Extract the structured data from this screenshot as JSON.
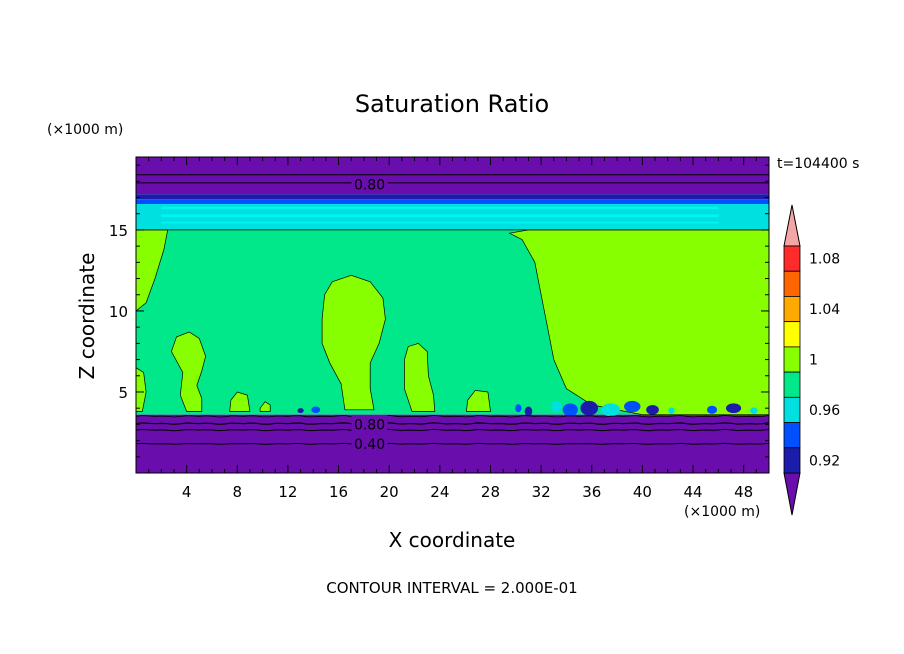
{
  "chart_data": {
    "type": "heatmap",
    "title": "Saturation Ratio",
    "xlabel": "X coordinate",
    "ylabel": "Z coordinate",
    "x_unit": "(×1000 m)",
    "y_unit": "(×1000 m)",
    "time_label": "t=104400 s",
    "footer": "CONTOUR INTERVAL = 2.000E-01",
    "xlim": [
      0,
      50
    ],
    "ylim": [
      0,
      19.5
    ],
    "x_ticks": [
      4,
      8,
      12,
      16,
      20,
      24,
      28,
      32,
      36,
      40,
      44,
      48
    ],
    "y_ticks": [
      5,
      10,
      15
    ],
    "contour_labels": [
      {
        "text": "0.80",
        "x": 17.5,
        "y": 17.8
      },
      {
        "text": "0.80",
        "x": 17.5,
        "y": 3.0
      },
      {
        "text": "0.40",
        "x": 17.5,
        "y": 1.8
      }
    ],
    "colorbar": {
      "levels": [
        0.9,
        0.92,
        0.94,
        0.96,
        0.98,
        1.0,
        1.02,
        1.04,
        1.06,
        1.08,
        1.1
      ],
      "labels": [
        "0.92",
        "0.96",
        "1",
        "1.04",
        "1.08"
      ],
      "colors": [
        "#6a0dad",
        "#1c1caa",
        "#0050ff",
        "#00e0e0",
        "#00e88a",
        "#88ff00",
        "#ffff00",
        "#ffaa00",
        "#ff6600",
        "#ff2a2a",
        "#f4a6a6"
      ]
    }
  }
}
